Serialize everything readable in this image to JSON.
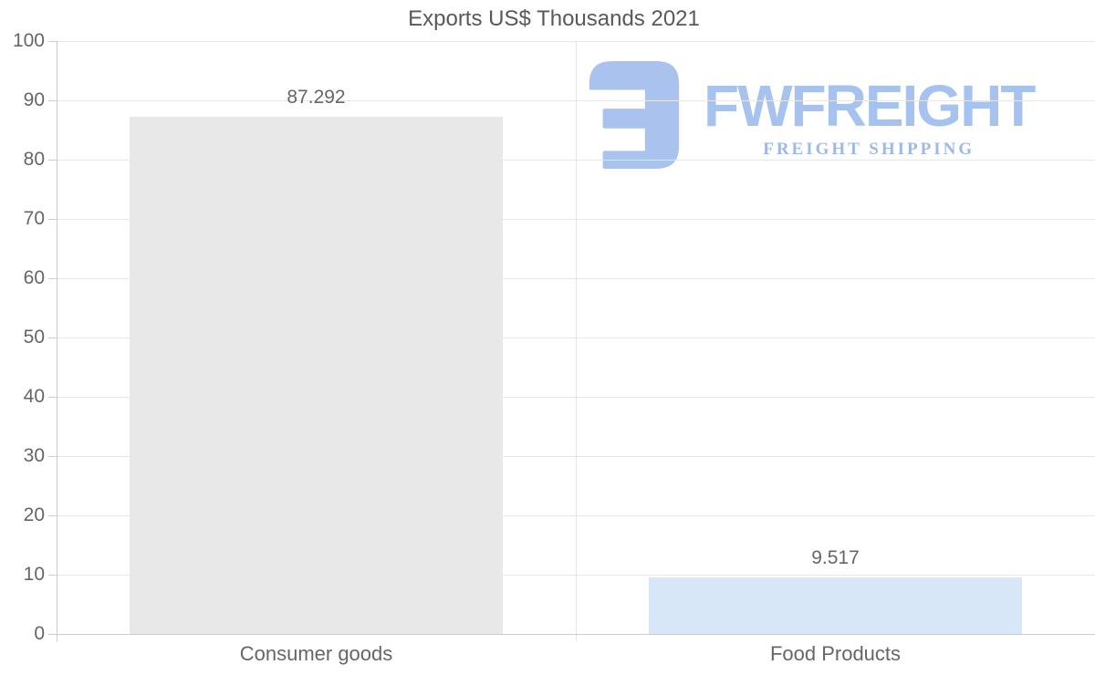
{
  "chart_data": {
    "type": "bar",
    "title": "Exports US$ Thousands 2021",
    "categories": [
      "Consumer goods",
      "Food Products"
    ],
    "values": [
      87.292,
      9.517
    ],
    "value_labels": [
      "87.292",
      "9.517"
    ],
    "bar_colors": [
      "#e8e8e8",
      "#d8e7f7"
    ],
    "xlabel": "",
    "ylabel": "",
    "ylim": [
      0,
      100
    ],
    "yticks": [
      0,
      10,
      20,
      30,
      40,
      50,
      60,
      70,
      80,
      90,
      100
    ],
    "grid": "horizontal gridlines, one vertical category divider",
    "legend": "none"
  },
  "watermark": {
    "brand": "FWFREIGHT",
    "tagline": "FREIGHT SHIPPING",
    "icon": "fwfreight-logo-icon",
    "brand_color": "#a6c3f0",
    "tagline_color": "#9db9ea",
    "icon_color": "#a9c3ee"
  },
  "colors": {
    "background": "#ffffff",
    "title_text": "#58595b",
    "axis_text": "#666666",
    "value_label_text": "#666666",
    "gridline": "#e6e6e6",
    "axis_line": "#cccccc"
  }
}
